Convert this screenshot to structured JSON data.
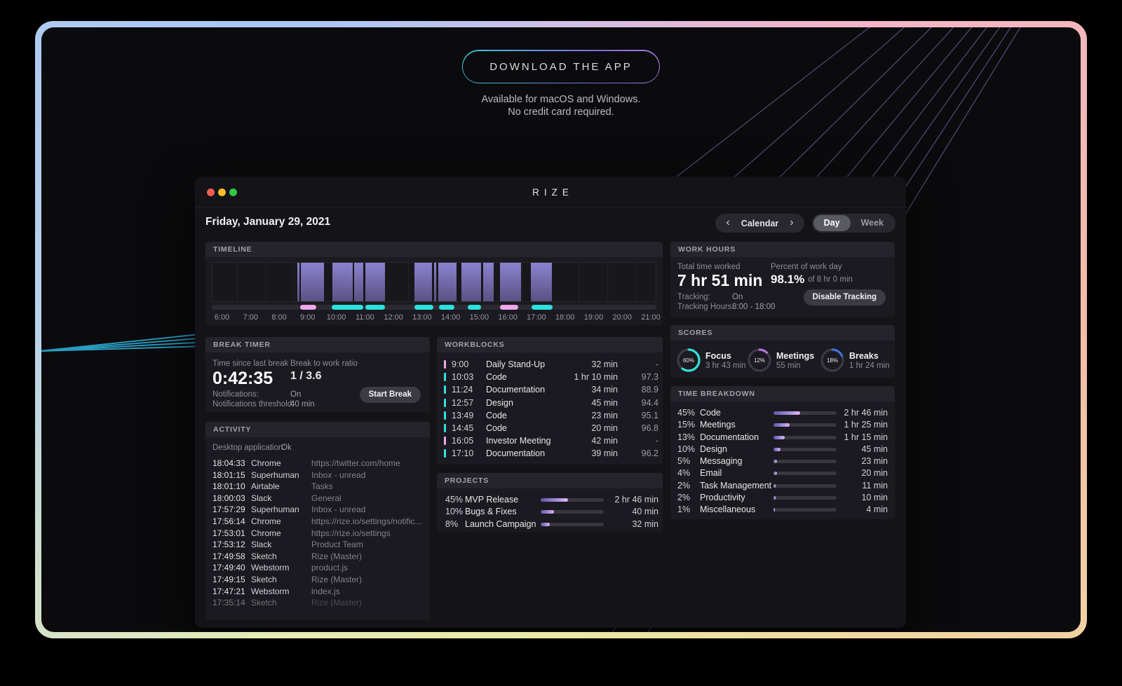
{
  "hero": {
    "download_button": "DOWNLOAD THE APP",
    "subtitle_line1": "Available for macOS and Windows.",
    "subtitle_line2": "No credit card required."
  },
  "window": {
    "title": "RIZE",
    "date": "Friday, January 29, 2021",
    "calendar_label": "Calendar",
    "tab_day": "Day",
    "tab_week": "Week",
    "selected_tab": "Day"
  },
  "timeline": {
    "title": "TIMELINE",
    "hour_labels": [
      "6:00",
      "7:00",
      "8:00",
      "9:00",
      "10:00",
      "11:00",
      "12:00",
      "13:00",
      "14:00",
      "15:00",
      "16:00",
      "17:00",
      "18:00",
      "19:00",
      "20:00",
      "21:00"
    ],
    "bars_pct": [
      [
        19.1,
        19.6
      ],
      [
        20.0,
        25.2
      ],
      [
        27.0,
        31.7
      ],
      [
        31.9,
        34.0
      ],
      [
        34.5,
        38.9
      ],
      [
        45.5,
        49.6
      ],
      [
        50.0,
        50.4
      ],
      [
        51.0,
        55.1
      ],
      [
        56.1,
        60.6
      ],
      [
        61.1,
        63.4
      ],
      [
        64.9,
        69.6
      ],
      [
        71.9,
        76.6
      ]
    ],
    "segments": [
      {
        "start": 19.9,
        "end": 23.5,
        "type": "meeting"
      },
      {
        "start": 27.0,
        "end": 34.0,
        "type": "focus"
      },
      {
        "start": 34.5,
        "end": 38.9,
        "type": "focus"
      },
      {
        "start": 45.6,
        "end": 49.8,
        "type": "focus"
      },
      {
        "start": 51.1,
        "end": 54.6,
        "type": "focus"
      },
      {
        "start": 57.5,
        "end": 60.6,
        "type": "focus"
      },
      {
        "start": 64.9,
        "end": 69.0,
        "type": "meeting"
      },
      {
        "start": 71.9,
        "end": 76.6,
        "type": "focus"
      }
    ]
  },
  "break_timer": {
    "title": "BREAK TIMER",
    "since_label": "Time since last break",
    "since_value": "0:42:35",
    "ratio_label": "Break to work ratio",
    "ratio_value": "1 / 3.6",
    "notifications_label": "Notifications:",
    "notifications_value": "On",
    "threshold_label": "Notifications threshold:",
    "threshold_value": "40 min",
    "start_break_button": "Start Break"
  },
  "activity": {
    "title": "ACTIVITY",
    "desktop_label": "Desktop application:",
    "desktop_value": "Ok",
    "rows": [
      {
        "time": "18:04:33",
        "app": "Chrome",
        "detail": "https://twitter.com/home"
      },
      {
        "time": "18:01:15",
        "app": "Superhuman",
        "detail": "Inbox - unread"
      },
      {
        "time": "18:01:10",
        "app": "Airtable",
        "detail": "Tasks"
      },
      {
        "time": "18:00:03",
        "app": "Slack",
        "detail": "General"
      },
      {
        "time": "17:57:29",
        "app": "Superhuman",
        "detail": "Inbox - unread"
      },
      {
        "time": "17:56:14",
        "app": "Chrome",
        "detail": "https://rize.io/settings/notific..."
      },
      {
        "time": "17:53:01",
        "app": "Chrome",
        "detail": "https://rize.io/settings"
      },
      {
        "time": "17:53:12",
        "app": "Slack",
        "detail": "Product Team"
      },
      {
        "time": "17:49:58",
        "app": "Sketch",
        "detail": "Rize (Master)"
      },
      {
        "time": "17:49:40",
        "app": "Webstorm",
        "detail": "product.js"
      },
      {
        "time": "17:49:15",
        "app": "Sketch",
        "detail": "Rize (Master)"
      },
      {
        "time": "17:47:21",
        "app": "Webstorm",
        "detail": "index.js"
      },
      {
        "time": "17:35:14",
        "app": "Sketch",
        "detail": "Rize (Master)"
      }
    ]
  },
  "workblocks": {
    "title": "WORKBLOCKS",
    "rows": [
      {
        "time": "9:00",
        "label": "Daily Stand-Up",
        "duration": "32 min",
        "score": "-",
        "type": "meeting"
      },
      {
        "time": "10:03",
        "label": "Code",
        "duration": "1 hr 10 min",
        "score": "97.3",
        "type": "focus"
      },
      {
        "time": "11:24",
        "label": "Documentation",
        "duration": "34 min",
        "score": "88.9",
        "type": "focus"
      },
      {
        "time": "12:57",
        "label": "Design",
        "duration": "45 min",
        "score": "94.4",
        "type": "focus"
      },
      {
        "time": "13:49",
        "label": "Code",
        "duration": "23 min",
        "score": "95.1",
        "type": "focus"
      },
      {
        "time": "14:45",
        "label": "Code",
        "duration": "20 min",
        "score": "96.8",
        "type": "focus"
      },
      {
        "time": "16:05",
        "label": "Investor Meeting",
        "duration": "42 min",
        "score": "-",
        "type": "meeting"
      },
      {
        "time": "17:10",
        "label": "Documentation",
        "duration": "39 min",
        "score": "96.2",
        "type": "focus"
      }
    ]
  },
  "projects": {
    "title": "PROJECTS",
    "rows": [
      {
        "percent": "45%",
        "label": "MVP Release",
        "fill": 43,
        "duration": "2 hr 46 min"
      },
      {
        "percent": "10%",
        "label": "Bugs & Fixes",
        "fill": 21,
        "duration": "40 min"
      },
      {
        "percent": "8%",
        "label": "Launch Campaign",
        "fill": 14,
        "duration": "32 min"
      }
    ]
  },
  "work_hours": {
    "title": "WORK HOURS",
    "total_label": "Total time worked",
    "total_value": "7 hr 51 min",
    "percent_label": "Percent of work day",
    "percent_value": "98.1%",
    "percent_of": "of 8 hr 0 min",
    "tracking_label": "Tracking:",
    "tracking_value": "On",
    "hours_label": "Tracking Hours:",
    "hours_value": "8:00 - 18:00",
    "disable_button": "Disable Tracking"
  },
  "scores": {
    "title": "SCORES",
    "items": [
      {
        "percent": 60,
        "percent_label": "60%",
        "label": "Focus",
        "time": "3 hr 43 min",
        "color": "#35dfd8"
      },
      {
        "percent": 12,
        "percent_label": "12%",
        "label": "Meetings",
        "time": "55 min",
        "color": "#b873e0"
      },
      {
        "percent": 18,
        "percent_label": "18%",
        "label": "Breaks",
        "time": "1 hr 24 min",
        "color": "#3d74e0"
      }
    ]
  },
  "time_breakdown": {
    "title": "TIME BREAKDOWN",
    "rows": [
      {
        "percent": "45%",
        "label": "Code",
        "fill": 42,
        "duration": "2 hr 46 min"
      },
      {
        "percent": "15%",
        "label": "Meetings",
        "fill": 26,
        "duration": "1 hr 25 min"
      },
      {
        "percent": "13%",
        "label": "Documentation",
        "fill": 18,
        "duration": "1 hr 15 min"
      },
      {
        "percent": "10%",
        "label": "Design",
        "fill": 11,
        "duration": "45 min"
      },
      {
        "percent": "5%",
        "label": "Messaging",
        "fill": 5,
        "duration": "23 min"
      },
      {
        "percent": "4%",
        "label": "Email",
        "fill": 5,
        "duration": "20 min"
      },
      {
        "percent": "2%",
        "label": "Task Management",
        "fill": 3,
        "duration": "11 min"
      },
      {
        "percent": "2%",
        "label": "Productivity",
        "fill": 3,
        "duration": "10 min"
      },
      {
        "percent": "1%",
        "label": "Miscellaneous",
        "fill": 2,
        "duration": "4 min"
      }
    ]
  },
  "colors": {
    "focus": "#29e2df",
    "meeting": "#f0a6ea",
    "bar_purple_top": "#8b82cf",
    "bar_purple_bottom": "#5a5183"
  }
}
